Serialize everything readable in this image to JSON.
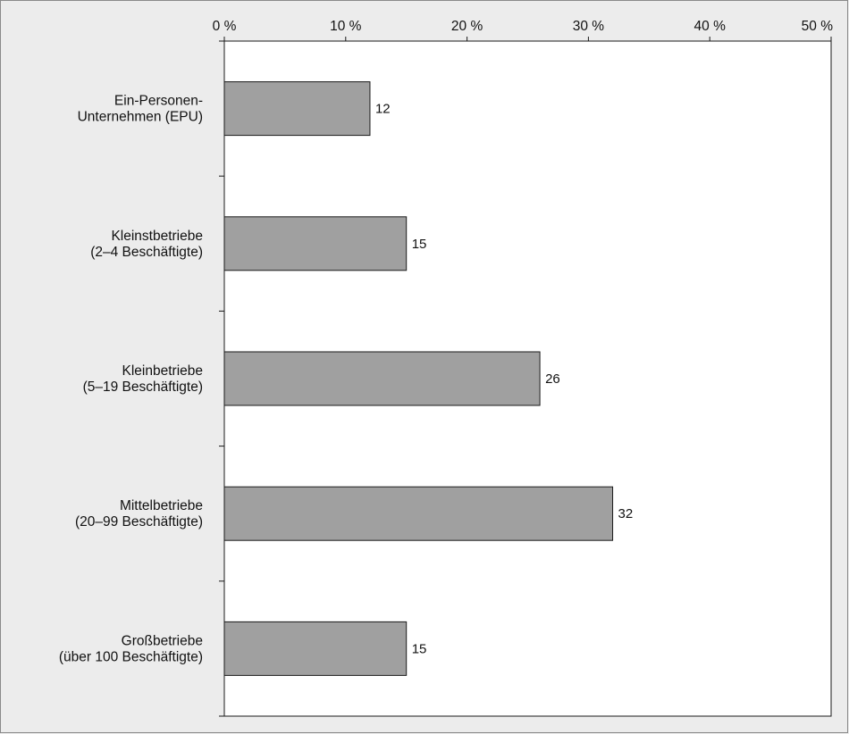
{
  "chart_data": {
    "type": "bar",
    "orientation": "horizontal",
    "categories": [
      [
        "Ein-Personen-",
        "Unternehmen (EPU)"
      ],
      [
        "Kleinstbetriebe",
        "(2–4 Beschäftigte)"
      ],
      [
        "Kleinbetriebe",
        "(5–19 Beschäftigte)"
      ],
      [
        "Mittelbetriebe",
        "(20–99 Beschäftigte)"
      ],
      [
        "Großbetriebe",
        "(über 100 Beschäftigte)"
      ]
    ],
    "values": [
      12,
      15,
      26,
      32,
      15
    ],
    "xlim": [
      0,
      50
    ],
    "x_ticks": [
      0,
      10,
      20,
      30,
      40,
      50
    ],
    "x_tick_labels": [
      "0 %",
      "10 %",
      "20 %",
      "30 %",
      "40 %",
      "50 %"
    ],
    "axis_position": "top",
    "grid": false,
    "legend": "none",
    "title": "",
    "xlabel": "",
    "ylabel": "",
    "colors": {
      "bar_fill": "#a0a0a0",
      "bar_stroke": "#1a1a1a",
      "plot_background": "#ffffff",
      "page_background": "#ececec",
      "axis": "#1a1a1a"
    }
  }
}
